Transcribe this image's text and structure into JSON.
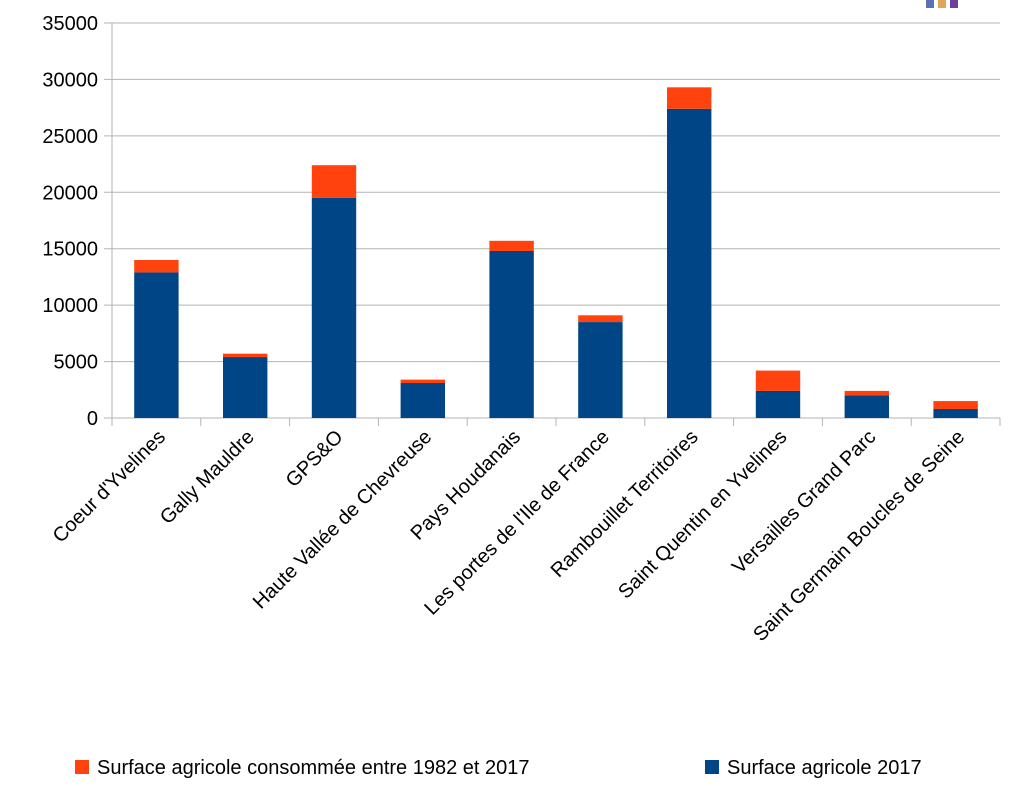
{
  "chart_data": {
    "type": "bar",
    "stacked": true,
    "title": "",
    "xlabel": "",
    "ylabel": "",
    "ylim": [
      0,
      35000
    ],
    "yticks": [
      0,
      5000,
      10000,
      15000,
      20000,
      25000,
      30000,
      35000
    ],
    "grid": true,
    "legend_position": "bottom",
    "categories": [
      "Coeur d'Yvelines",
      "Gally Mauldre",
      "GPS&O",
      "Haute Vallée de Chevreuse",
      "Pays Houdanais",
      "Les portes de l'Ile de France",
      "Rambouillet Territoires",
      "Saint Quentin en Yvelines",
      "Versailles Grand Parc",
      "Saint Germain Boucles de Seine"
    ],
    "series": [
      {
        "name": "Surface agricole 2017",
        "color": "#004586",
        "values": [
          12900,
          5400,
          19500,
          3100,
          14800,
          8500,
          27400,
          2400,
          2000,
          800
        ]
      },
      {
        "name": "Surface agricole consommée entre 1982 et 2017",
        "color": "#ff420e",
        "values": [
          1100,
          300,
          2900,
          300,
          900,
          600,
          1900,
          1800,
          400,
          700
        ]
      }
    ],
    "legend_order": [
      1,
      0
    ]
  }
}
